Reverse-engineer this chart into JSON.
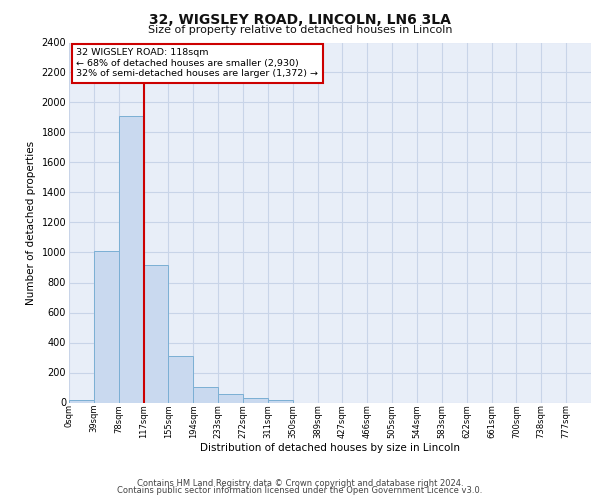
{
  "title": "32, WIGSLEY ROAD, LINCOLN, LN6 3LA",
  "subtitle": "Size of property relative to detached houses in Lincoln",
  "xlabel": "Distribution of detached houses by size in Lincoln",
  "ylabel": "Number of detached properties",
  "bin_labels": [
    "0sqm",
    "39sqm",
    "78sqm",
    "117sqm",
    "155sqm",
    "194sqm",
    "233sqm",
    "272sqm",
    "311sqm",
    "350sqm",
    "389sqm",
    "427sqm",
    "466sqm",
    "505sqm",
    "544sqm",
    "583sqm",
    "622sqm",
    "661sqm",
    "700sqm",
    "738sqm",
    "777sqm"
  ],
  "bar_heights": [
    20,
    1010,
    1910,
    920,
    310,
    105,
    55,
    30,
    15,
    0,
    0,
    0,
    0,
    0,
    0,
    0,
    0,
    0,
    0,
    0,
    0
  ],
  "bar_color": "#c9d9ef",
  "bar_edge_color": "#7bafd4",
  "grid_color": "#c8d4e8",
  "background_color": "#e8eef8",
  "property_line_x": 3.0,
  "annotation_text": "32 WIGSLEY ROAD: 118sqm\n← 68% of detached houses are smaller (2,930)\n32% of semi-detached houses are larger (1,372) →",
  "annotation_box_color": "#cc0000",
  "footer_line1": "Contains HM Land Registry data © Crown copyright and database right 2024.",
  "footer_line2": "Contains public sector information licensed under the Open Government Licence v3.0.",
  "ylim": [
    0,
    2400
  ],
  "yticks": [
    0,
    200,
    400,
    600,
    800,
    1000,
    1200,
    1400,
    1600,
    1800,
    2000,
    2200,
    2400
  ]
}
